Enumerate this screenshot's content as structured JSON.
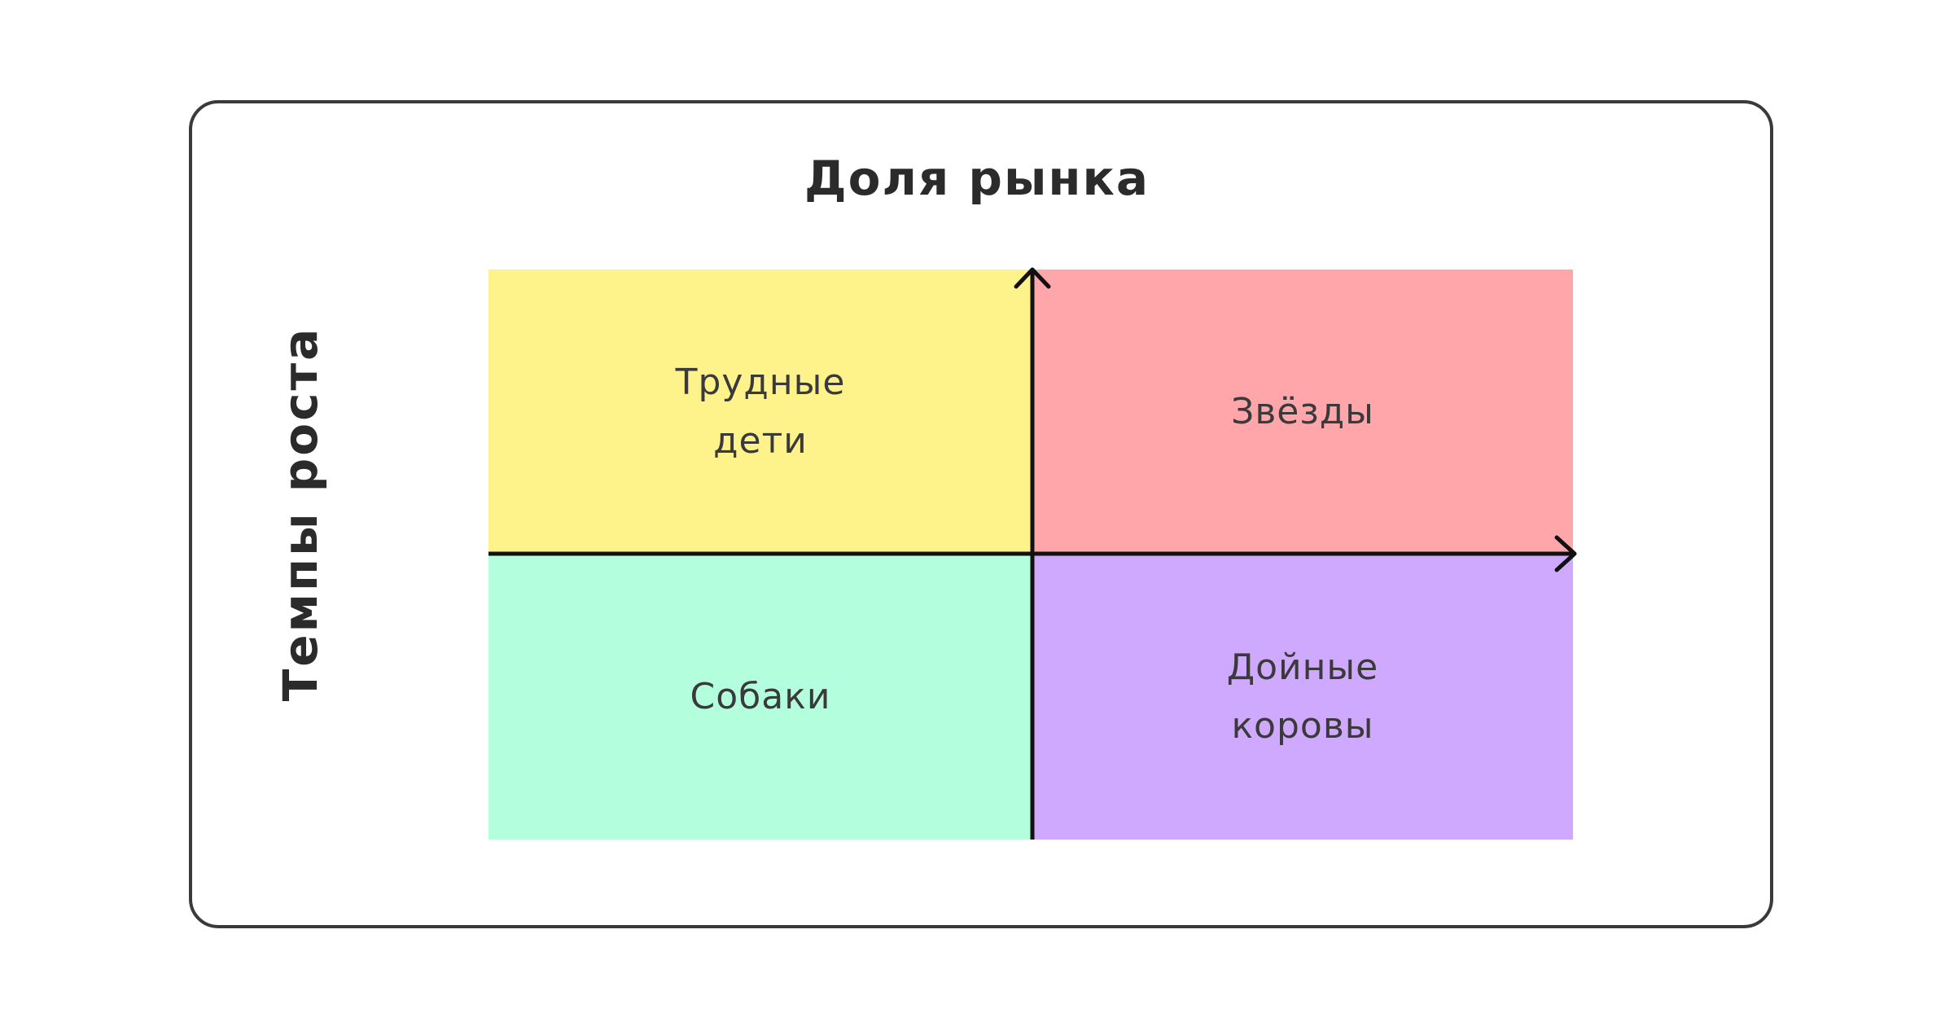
{
  "title": "Доля рынка",
  "y_label": "Темпы роста",
  "quadrants": {
    "top_left": {
      "line1": "Трудные",
      "line2": "дети",
      "color": "#FEF28B"
    },
    "top_right": {
      "line1": "Звёзды",
      "color": "#FEA6A9"
    },
    "bottom_left": {
      "line1": "Собаки",
      "color": "#B3FEDD"
    },
    "bottom_right": {
      "line1": "Дойные",
      "line2": "коровы",
      "color": "#CFA9FD"
    }
  }
}
